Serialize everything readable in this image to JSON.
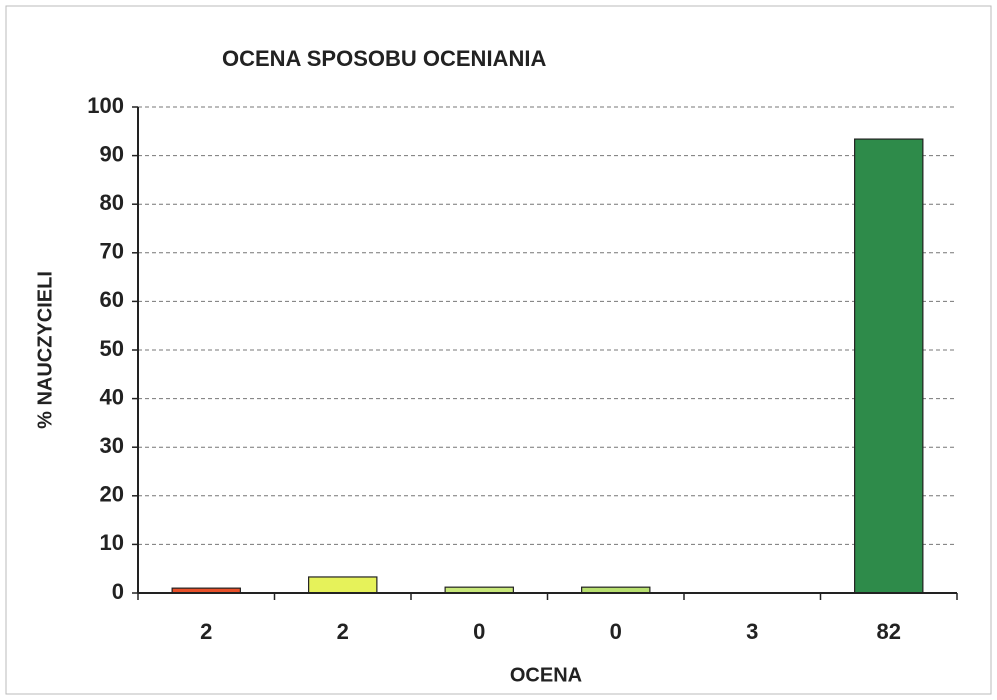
{
  "chart_data": {
    "type": "bar",
    "title": "OCENA SPOSOBU OCENIANIA",
    "x_label": "OCENA",
    "y_label": "% NAUCZYCIELI",
    "categories": [
      "2",
      "2",
      "0",
      "0",
      "3",
      "82"
    ],
    "values": [
      1.0,
      3.3,
      1.2,
      1.2,
      0,
      93.4
    ],
    "colors": [
      "#e8502a",
      "#e6f25a",
      "#c8e87a",
      "#b8e070",
      "#7cc45a",
      "#2e8b4a"
    ],
    "ylim": [
      0,
      100
    ],
    "yticks": [
      0,
      10,
      20,
      30,
      40,
      50,
      60,
      70,
      80,
      90,
      100
    ],
    "grid": true
  }
}
